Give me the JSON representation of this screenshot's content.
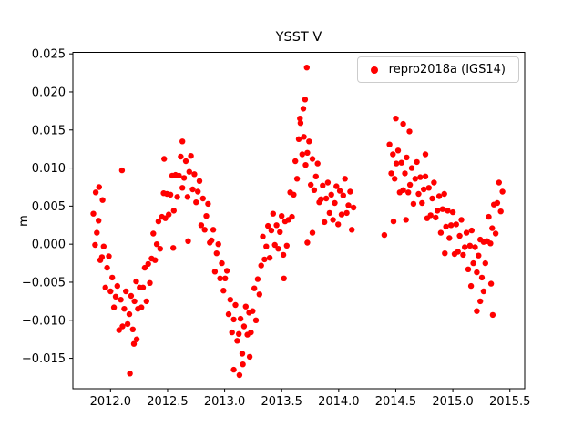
{
  "chart_data": {
    "type": "scatter",
    "title": "YSST V",
    "xlabel": "",
    "ylabel": "m",
    "xlim": [
      2011.67,
      2015.63
    ],
    "ylim": [
      -0.019,
      0.0252
    ],
    "xticks": [
      2012.0,
      2012.5,
      2013.0,
      2013.5,
      2014.0,
      2014.5,
      2015.0,
      2015.5
    ],
    "yticks": [
      -0.015,
      -0.01,
      -0.005,
      0.0,
      0.005,
      0.01,
      0.015,
      0.02,
      0.025
    ],
    "grid": false,
    "legend": {
      "position": "upper right"
    },
    "series": [
      {
        "name": "repro2018a (IGS14)",
        "marker": "dot",
        "color": "#ff0000",
        "points": [
          [
            2011.85,
            0.004
          ],
          [
            2011.865,
            -0.0001
          ],
          [
            2011.88,
            0.0015
          ],
          [
            2011.895,
            0.0031
          ],
          [
            2011.91,
            -0.0021
          ],
          [
            2011.925,
            -0.0017
          ],
          [
            2011.94,
            -0.0003
          ],
          [
            2011.955,
            -0.0057
          ],
          [
            2011.97,
            -0.0031
          ],
          [
            2011.985,
            -0.0016
          ],
          [
            2012.0,
            -0.0062
          ],
          [
            2012.015,
            -0.0044
          ],
          [
            2012.03,
            -0.0083
          ],
          [
            2012.045,
            -0.0069
          ],
          [
            2012.06,
            -0.0055
          ],
          [
            2012.075,
            -0.0113
          ],
          [
            2012.09,
            -0.0073
          ],
          [
            2012.105,
            -0.0108
          ],
          [
            2012.12,
            -0.0085
          ],
          [
            2012.135,
            -0.0062
          ],
          [
            2012.15,
            -0.0105
          ],
          [
            2012.165,
            -0.0092
          ],
          [
            2012.18,
            -0.0068
          ],
          [
            2012.195,
            -0.0112
          ],
          [
            2012.21,
            -0.0075
          ],
          [
            2012.225,
            -0.0049
          ],
          [
            2012.24,
            -0.0085
          ],
          [
            2012.255,
            -0.0057
          ],
          [
            2012.27,
            -0.0083
          ],
          [
            2012.285,
            -0.0057
          ],
          [
            2012.3,
            -0.0031
          ],
          [
            2012.315,
            -0.0075
          ],
          [
            2012.33,
            -0.0026
          ],
          [
            2012.345,
            -0.0051
          ],
          [
            2012.36,
            -0.0019
          ],
          [
            2012.375,
            0.0014
          ],
          [
            2012.39,
            -0.0021
          ],
          [
            2012.405,
            0.0
          ],
          [
            2012.42,
            0.003
          ],
          [
            2012.435,
            -0.0006
          ],
          [
            2012.45,
            0.0036
          ],
          [
            2012.465,
            0.0067
          ],
          [
            2012.48,
            0.0034
          ],
          [
            2012.495,
            0.0066
          ],
          [
            2012.51,
            0.0039
          ],
          [
            2012.525,
            0.0065
          ],
          [
            2012.54,
            0.009
          ],
          [
            2012.555,
            0.0044
          ],
          [
            2012.57,
            0.0091
          ],
          [
            2012.585,
            0.0062
          ],
          [
            2012.6,
            0.009
          ],
          [
            2012.615,
            0.0115
          ],
          [
            2012.63,
            0.0074
          ],
          [
            2012.645,
            0.0087
          ],
          [
            2012.66,
            0.0109
          ],
          [
            2012.675,
            0.0062
          ],
          [
            2012.69,
            0.0095
          ],
          [
            2012.705,
            0.0116
          ],
          [
            2012.72,
            0.0072
          ],
          [
            2012.735,
            0.0092
          ],
          [
            2012.75,
            0.0055
          ],
          [
            2012.765,
            0.0069
          ],
          [
            2012.78,
            0.0083
          ],
          [
            2012.795,
            0.0025
          ],
          [
            2012.81,
            0.006
          ],
          [
            2012.825,
            0.0019
          ],
          [
            2012.84,
            0.0037
          ],
          [
            2012.855,
            0.0053
          ],
          [
            2012.87,
            0.0002
          ],
          [
            2012.885,
            0.0005
          ],
          [
            2012.9,
            0.0019
          ],
          [
            2012.915,
            -0.0036
          ],
          [
            2012.93,
            -0.0012
          ],
          [
            2012.945,
            0.0
          ],
          [
            2012.96,
            -0.0045
          ],
          [
            2012.975,
            -0.0025
          ],
          [
            2012.99,
            -0.0061
          ],
          [
            2013.005,
            -0.0045
          ],
          [
            2013.02,
            -0.0035
          ],
          [
            2013.035,
            -0.0092
          ],
          [
            2013.05,
            -0.0073
          ],
          [
            2013.065,
            -0.0116
          ],
          [
            2013.08,
            -0.0099
          ],
          [
            2013.095,
            -0.008
          ],
          [
            2013.11,
            -0.0127
          ],
          [
            2013.125,
            -0.0118
          ],
          [
            2013.14,
            -0.0098
          ],
          [
            2013.155,
            -0.0144
          ],
          [
            2013.17,
            -0.0108
          ],
          [
            2013.185,
            -0.0082
          ],
          [
            2013.2,
            -0.0119
          ],
          [
            2013.215,
            -0.009
          ],
          [
            2013.23,
            -0.0116
          ],
          [
            2013.245,
            -0.0088
          ],
          [
            2013.26,
            -0.0058
          ],
          [
            2013.275,
            -0.01
          ],
          [
            2013.29,
            -0.0046
          ],
          [
            2013.305,
            -0.0066
          ],
          [
            2013.32,
            -0.0028
          ],
          [
            2013.335,
            0.001
          ],
          [
            2013.35,
            -0.002
          ],
          [
            2013.365,
            -0.0003
          ],
          [
            2013.38,
            0.0024
          ],
          [
            2013.395,
            -0.0018
          ],
          [
            2013.41,
            0.0018
          ],
          [
            2013.425,
            0.004
          ],
          [
            2013.44,
            -0.0001
          ],
          [
            2013.455,
            0.0025
          ],
          [
            2013.47,
            -0.0006
          ],
          [
            2013.485,
            0.0016
          ],
          [
            2013.5,
            0.0037
          ],
          [
            2013.515,
            -0.0014
          ],
          [
            2013.53,
            0.003
          ],
          [
            2013.545,
            -0.0002
          ],
          [
            2013.56,
            0.0032
          ],
          [
            2013.575,
            0.0068
          ],
          [
            2013.59,
            0.0036
          ],
          [
            2013.605,
            0.0065
          ],
          [
            2013.62,
            0.0109
          ],
          [
            2013.635,
            0.0086
          ],
          [
            2013.65,
            0.0138
          ],
          [
            2013.665,
            0.0159
          ],
          [
            2013.68,
            0.0118
          ],
          [
            2013.695,
            0.0141
          ],
          [
            2013.71,
            0.0104
          ],
          [
            2013.725,
            0.012
          ],
          [
            2013.74,
            0.0135
          ],
          [
            2013.755,
            0.0078
          ],
          [
            2013.77,
            0.0112
          ],
          [
            2013.785,
            0.0071
          ],
          [
            2013.8,
            0.0089
          ],
          [
            2013.815,
            0.0106
          ],
          [
            2013.83,
            0.0055
          ],
          [
            2013.845,
            0.0059
          ],
          [
            2013.86,
            0.0077
          ],
          [
            2013.875,
            0.0029
          ],
          [
            2013.89,
            0.006
          ],
          [
            2013.905,
            0.0081
          ],
          [
            2013.92,
            0.0041
          ],
          [
            2013.935,
            0.0065
          ],
          [
            2013.95,
            0.0032
          ],
          [
            2013.965,
            0.0054
          ],
          [
            2013.98,
            0.0076
          ],
          [
            2013.995,
            0.0026
          ],
          [
            2014.01,
            0.007
          ],
          [
            2014.025,
            0.0039
          ],
          [
            2014.04,
            0.0064
          ],
          [
            2014.055,
            0.0086
          ],
          [
            2014.07,
            0.0041
          ],
          [
            2014.085,
            0.0051
          ],
          [
            2014.1,
            0.0069
          ],
          [
            2014.115,
            0.0019
          ],
          [
            2014.13,
            0.0048
          ],
          [
            2014.4,
            0.0012
          ],
          [
            2014.445,
            0.0131
          ],
          [
            2014.46,
            0.0093
          ],
          [
            2014.475,
            0.0118
          ],
          [
            2014.49,
            0.0086
          ],
          [
            2014.505,
            0.0106
          ],
          [
            2014.52,
            0.0123
          ],
          [
            2014.535,
            0.0068
          ],
          [
            2014.55,
            0.0107
          ],
          [
            2014.565,
            0.0071
          ],
          [
            2014.58,
            0.0093
          ],
          [
            2014.595,
            0.0114
          ],
          [
            2014.61,
            0.0068
          ],
          [
            2014.625,
            0.0078
          ],
          [
            2014.64,
            0.01
          ],
          [
            2014.655,
            0.0053
          ],
          [
            2014.67,
            0.0086
          ],
          [
            2014.685,
            0.0108
          ],
          [
            2014.7,
            0.0066
          ],
          [
            2014.715,
            0.0088
          ],
          [
            2014.73,
            0.0054
          ],
          [
            2014.745,
            0.0072
          ],
          [
            2014.76,
            0.0089
          ],
          [
            2014.775,
            0.0034
          ],
          [
            2014.79,
            0.0074
          ],
          [
            2014.805,
            0.0038
          ],
          [
            2014.82,
            0.006
          ],
          [
            2014.835,
            0.0081
          ],
          [
            2014.85,
            0.0035
          ],
          [
            2014.865,
            0.0044
          ],
          [
            2014.88,
            0.0063
          ],
          [
            2014.895,
            0.0015
          ],
          [
            2014.91,
            0.0046
          ],
          [
            2014.925,
            0.0066
          ],
          [
            2014.94,
            0.0023
          ],
          [
            2014.955,
            0.0044
          ],
          [
            2014.97,
            0.0008
          ],
          [
            2014.985,
            0.0025
          ],
          [
            2015.0,
            0.0042
          ],
          [
            2015.015,
            -0.0013
          ],
          [
            2015.03,
            0.0026
          ],
          [
            2015.045,
            -0.001
          ],
          [
            2015.06,
            0.0011
          ],
          [
            2015.075,
            0.0032
          ],
          [
            2015.09,
            -0.0014
          ],
          [
            2015.105,
            -0.0004
          ],
          [
            2015.12,
            0.0015
          ],
          [
            2015.135,
            -0.0033
          ],
          [
            2015.15,
            -0.0002
          ],
          [
            2015.165,
            0.0018
          ],
          [
            2015.18,
            -0.0025
          ],
          [
            2015.195,
            -0.0004
          ],
          [
            2015.21,
            -0.0037
          ],
          [
            2015.225,
            -0.0015
          ],
          [
            2015.24,
            0.0006
          ],
          [
            2015.255,
            -0.0044
          ],
          [
            2015.27,
            0.0003
          ],
          [
            2015.285,
            -0.0025
          ],
          [
            2015.3,
            0.0004
          ],
          [
            2015.315,
            0.0036
          ],
          [
            2015.33,
            0.0001
          ],
          [
            2015.345,
            0.0021
          ],
          [
            2015.36,
            0.0052
          ],
          [
            2015.375,
            0.0014
          ],
          [
            2015.39,
            0.0054
          ],
          [
            2015.405,
            0.0081
          ],
          [
            2015.42,
            0.0043
          ],
          [
            2015.435,
            0.0069
          ],
          [
            2011.87,
            0.0068
          ],
          [
            2011.9,
            0.0075
          ],
          [
            2011.93,
            0.0058
          ],
          [
            2012.1,
            0.0097
          ],
          [
            2012.17,
            -0.017
          ],
          [
            2012.205,
            -0.0131
          ],
          [
            2012.23,
            -0.0125
          ],
          [
            2012.47,
            0.0112
          ],
          [
            2012.55,
            -0.0005
          ],
          [
            2012.63,
            0.0135
          ],
          [
            2012.68,
            0.0004
          ],
          [
            2013.08,
            -0.0165
          ],
          [
            2013.13,
            -0.0172
          ],
          [
            2013.16,
            -0.0158
          ],
          [
            2013.22,
            -0.0148
          ],
          [
            2013.52,
            -0.0045
          ],
          [
            2013.66,
            0.0165
          ],
          [
            2013.69,
            0.0178
          ],
          [
            2013.705,
            0.019
          ],
          [
            2013.72,
            0.0232
          ],
          [
            2013.725,
            0.0002
          ],
          [
            2013.77,
            0.0015
          ],
          [
            2014.5,
            0.0165
          ],
          [
            2014.565,
            0.0158
          ],
          [
            2014.62,
            0.0148
          ],
          [
            2014.59,
            0.0032
          ],
          [
            2014.48,
            0.003
          ],
          [
            2014.76,
            0.0118
          ],
          [
            2014.93,
            -0.0012
          ],
          [
            2015.16,
            -0.0055
          ],
          [
            2015.21,
            -0.0088
          ],
          [
            2015.24,
            -0.0075
          ],
          [
            2015.27,
            -0.0062
          ],
          [
            2015.335,
            -0.0052
          ],
          [
            2015.35,
            -0.0093
          ]
        ]
      }
    ]
  }
}
